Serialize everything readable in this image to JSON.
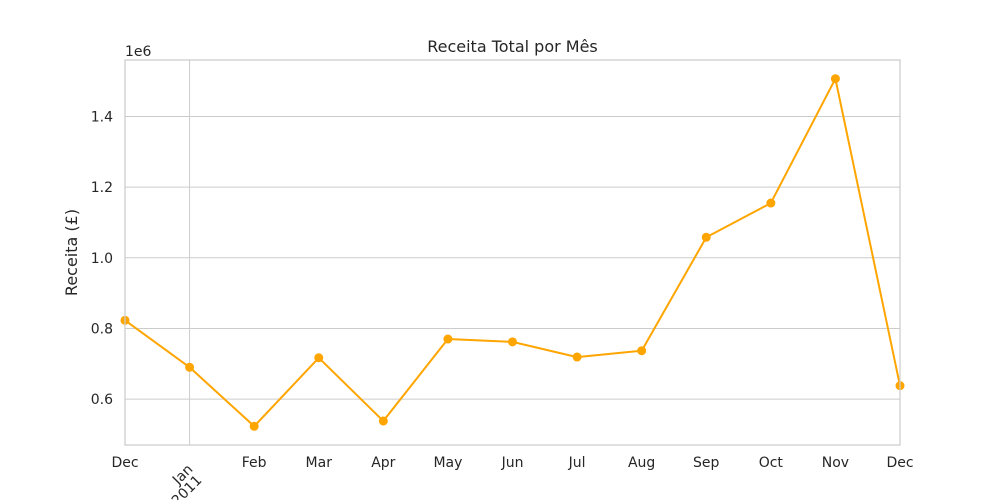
{
  "chart_data": {
    "type": "line",
    "title": "Receita Total por Mês",
    "xlabel": "",
    "ylabel": "Receita (£)",
    "y_multiplier_label": "1e6",
    "color": "#FFA500",
    "grid": true,
    "ylim": [
      0.47,
      1.56
    ],
    "y_ticks": [
      0.6,
      0.8,
      1.0,
      1.2,
      1.4
    ],
    "y_tick_labels": [
      "0.6",
      "0.8",
      "1.0",
      "1.2",
      "1.4"
    ],
    "x_tick_labels": [
      {
        "label": "Dec",
        "sub": ""
      },
      {
        "label": "Jan",
        "sub": "2011"
      },
      {
        "label": "Feb",
        "sub": ""
      },
      {
        "label": "Mar",
        "sub": ""
      },
      {
        "label": "Apr",
        "sub": ""
      },
      {
        "label": "May",
        "sub": ""
      },
      {
        "label": "Jun",
        "sub": ""
      },
      {
        "label": "Jul",
        "sub": ""
      },
      {
        "label": "Aug",
        "sub": ""
      },
      {
        "label": "Sep",
        "sub": ""
      },
      {
        "label": "Oct",
        "sub": ""
      },
      {
        "label": "Nov",
        "sub": ""
      },
      {
        "label": "Dec",
        "sub": ""
      }
    ],
    "x": [
      "2010-12",
      "2011-01",
      "2011-02",
      "2011-03",
      "2011-04",
      "2011-05",
      "2011-06",
      "2011-07",
      "2011-08",
      "2011-09",
      "2011-10",
      "2011-11",
      "2011-12"
    ],
    "values": [
      0.823,
      0.69,
      0.523,
      0.717,
      0.538,
      0.77,
      0.762,
      0.719,
      0.737,
      1.058,
      1.155,
      1.507,
      0.638
    ]
  }
}
